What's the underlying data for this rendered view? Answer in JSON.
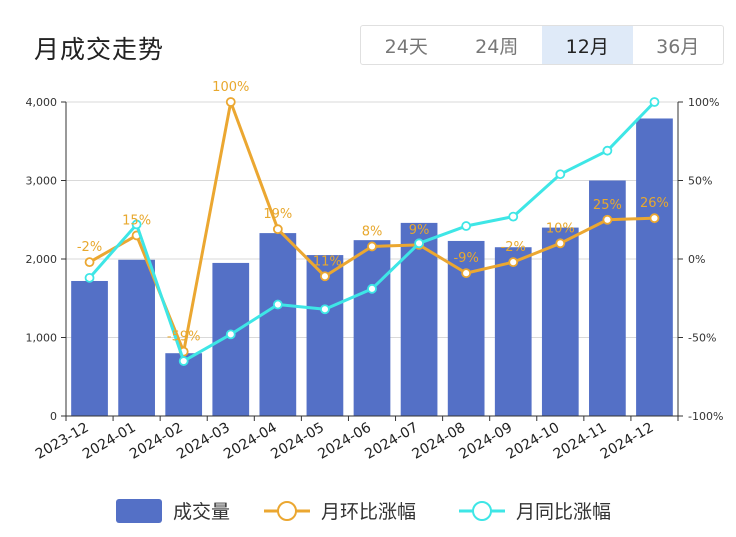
{
  "header": {
    "title": "月成交走势",
    "tabs": [
      {
        "label": "24天",
        "active": false
      },
      {
        "label": "24周",
        "active": false
      },
      {
        "label": "12月",
        "active": true
      },
      {
        "label": "36月",
        "active": false
      }
    ]
  },
  "colors": {
    "bar": "#5470c6",
    "mom_line": "#eba731",
    "yoy_line": "#3ee6e6",
    "grid": "#d9d9d9",
    "axis": "#333333"
  },
  "chart_data": {
    "type": "bar",
    "categories": [
      "2023-12",
      "2024-01",
      "2024-02",
      "2024-03",
      "2024-04",
      "2024-05",
      "2024-06",
      "2024-07",
      "2024-08",
      "2024-09",
      "2024-10",
      "2024-11",
      "2024-12"
    ],
    "series": [
      {
        "name": "成交量",
        "type": "bar",
        "axis": "left",
        "values": [
          1720,
          1990,
          800,
          1950,
          2330,
          2050,
          2240,
          2460,
          2230,
          2150,
          2400,
          3000,
          3790
        ]
      },
      {
        "name": "月环比涨幅",
        "type": "line",
        "axis": "right",
        "values": [
          -2,
          15,
          -59,
          100,
          19,
          -11,
          8,
          9,
          -9,
          -2,
          10,
          25,
          26
        ],
        "labels": [
          "-2%",
          "15%",
          "-59%",
          "100%",
          "19%",
          "-11%",
          "8%",
          "9%",
          "-9%",
          "-2%",
          "10%",
          "25%",
          "26%"
        ]
      },
      {
        "name": "月同比涨幅",
        "type": "line",
        "axis": "right",
        "values": [
          -12,
          22,
          -65,
          -48,
          -29,
          -32,
          -19,
          10,
          21,
          27,
          54,
          69,
          100
        ]
      }
    ],
    "y_left": {
      "ticks": [
        "0",
        "1,000",
        "2,000",
        "3,000",
        "4,000"
      ],
      "range": [
        0,
        4000
      ]
    },
    "y_right": {
      "ticks": [
        "-100%",
        "-50%",
        "0%",
        "50%",
        "100%"
      ],
      "range": [
        -100,
        100
      ]
    },
    "grid": true,
    "legend": "bottom"
  }
}
